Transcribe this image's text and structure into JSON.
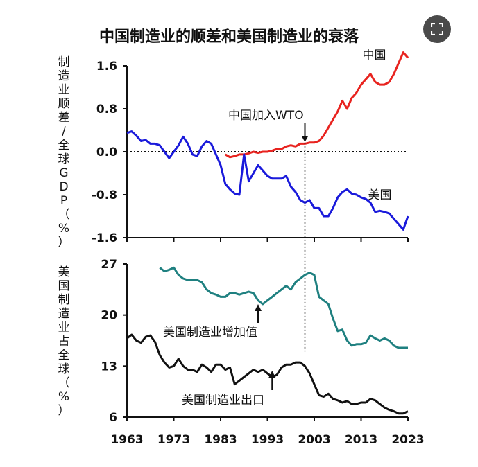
{
  "title": "中国制造业的顺差和美国制造业的衰落",
  "chart_data": [
    {
      "type": "line",
      "ylabel": "制造业顺差/全球GDP（%）",
      "ylim": [
        -1.6,
        1.6
      ],
      "yticks": [
        "1.6",
        "0.8",
        "0.0",
        "-0.8",
        "-1.6"
      ],
      "xlim": [
        1963,
        2023
      ],
      "reference_line": {
        "y": 0.0,
        "style": "dotted"
      },
      "series": [
        {
          "name": "中国",
          "color": "#e8231f",
          "x": [
            1984,
            1985,
            1986,
            1987,
            1988,
            1989,
            1990,
            1991,
            1992,
            1993,
            1994,
            1995,
            1996,
            1997,
            1998,
            1999,
            2000,
            2001,
            2002,
            2003,
            2004,
            2005,
            2006,
            2007,
            2008,
            2009,
            2010,
            2011,
            2012,
            2013,
            2014,
            2015,
            2016,
            2017,
            2018,
            2019,
            2020,
            2021,
            2022,
            2023
          ],
          "values": [
            -0.05,
            -0.1,
            -0.08,
            -0.05,
            -0.05,
            -0.03,
            0.0,
            -0.02,
            0.0,
            0.0,
            0.02,
            0.05,
            0.05,
            0.1,
            0.12,
            0.1,
            0.15,
            0.15,
            0.17,
            0.17,
            0.2,
            0.3,
            0.45,
            0.6,
            0.75,
            0.95,
            0.8,
            1.0,
            1.1,
            1.25,
            1.35,
            1.45,
            1.3,
            1.25,
            1.25,
            1.3,
            1.45,
            1.65,
            1.85,
            1.75
          ]
        },
        {
          "name": "美国",
          "color": "#1a1adb",
          "x": [
            1963,
            1964,
            1965,
            1966,
            1967,
            1968,
            1969,
            1970,
            1971,
            1972,
            1973,
            1974,
            1975,
            1976,
            1977,
            1978,
            1979,
            1980,
            1981,
            1982,
            1983,
            1984,
            1985,
            1986,
            1987,
            1988,
            1989,
            1990,
            1991,
            1992,
            1993,
            1994,
            1995,
            1996,
            1997,
            1998,
            1999,
            2000,
            2001,
            2002,
            2003,
            2004,
            2005,
            2006,
            2007,
            2008,
            2009,
            2010,
            2011,
            2012,
            2013,
            2014,
            2015,
            2016,
            2017,
            2018,
            2019,
            2020,
            2021,
            2022,
            2023
          ],
          "values": [
            0.35,
            0.38,
            0.3,
            0.2,
            0.22,
            0.15,
            0.15,
            0.12,
            0.0,
            -0.12,
            0.0,
            0.12,
            0.28,
            0.15,
            -0.05,
            -0.08,
            0.1,
            0.2,
            0.15,
            -0.05,
            -0.25,
            -0.6,
            -0.7,
            -0.78,
            -0.8,
            -0.05,
            -0.55,
            -0.4,
            -0.25,
            -0.35,
            -0.45,
            -0.5,
            -0.5,
            -0.5,
            -0.45,
            -0.65,
            -0.75,
            -0.9,
            -0.95,
            -0.9,
            -1.05,
            -1.05,
            -1.2,
            -1.2,
            -1.05,
            -0.85,
            -0.75,
            -0.7,
            -0.78,
            -0.8,
            -0.85,
            -0.88,
            -0.95,
            -1.12,
            -1.1,
            -1.12,
            -1.15,
            -1.25,
            -1.35,
            -1.45,
            -1.2
          ]
        }
      ],
      "annotations": [
        {
          "text": "中国加入WTO",
          "x": 2001
        },
        {
          "text": "中国",
          "x": 2017,
          "y": 1.65
        },
        {
          "text": "美国",
          "x": 2017,
          "y": -0.85
        }
      ]
    },
    {
      "type": "line",
      "ylabel": "美国制造业占全球（%）",
      "ylim": [
        6,
        27
      ],
      "yticks": [
        "27",
        "20",
        "13",
        "6"
      ],
      "xlim": [
        1963,
        2023
      ],
      "xticks": [
        "1963",
        "1973",
        "1983",
        "1993",
        "2003",
        "2013",
        "2023"
      ],
      "series": [
        {
          "name": "美国制造业增加值",
          "color": "#1f8080",
          "x": [
            1970,
            1971,
            1972,
            1973,
            1974,
            1975,
            1976,
            1977,
            1978,
            1979,
            1980,
            1981,
            1982,
            1983,
            1984,
            1985,
            1986,
            1987,
            1988,
            1989,
            1990,
            1991,
            1992,
            1993,
            1994,
            1995,
            1996,
            1997,
            1998,
            1999,
            2000,
            2001,
            2002,
            2003,
            2004,
            2005,
            2006,
            2007,
            2008,
            2009,
            2010,
            2011,
            2012,
            2013,
            2014,
            2015,
            2016,
            2017,
            2018,
            2019,
            2020,
            2021,
            2022,
            2023
          ],
          "values": [
            26.5,
            26.0,
            26.2,
            26.5,
            25.5,
            25.0,
            24.8,
            24.8,
            24.8,
            24.5,
            23.5,
            23.0,
            22.8,
            22.5,
            22.5,
            23.0,
            23.0,
            22.8,
            23.0,
            23.2,
            23.0,
            22.0,
            21.5,
            22.0,
            22.5,
            23.0,
            23.5,
            24.0,
            23.5,
            24.5,
            25.0,
            25.5,
            25.8,
            25.5,
            22.5,
            22.0,
            21.5,
            19.5,
            17.8,
            18.0,
            16.5,
            15.8,
            16.0,
            16.0,
            16.2,
            17.2,
            16.8,
            16.5,
            16.8,
            16.5,
            15.8,
            15.5,
            15.5,
            15.5
          ]
        },
        {
          "name": "美国制造业出口",
          "color": "#111111",
          "x": [
            1963,
            1964,
            1965,
            1966,
            1967,
            1968,
            1969,
            1970,
            1971,
            1972,
            1973,
            1974,
            1975,
            1976,
            1977,
            1978,
            1979,
            1980,
            1981,
            1982,
            1983,
            1984,
            1985,
            1986,
            1987,
            1988,
            1989,
            1990,
            1991,
            1992,
            1993,
            1994,
            1995,
            1996,
            1997,
            1998,
            1999,
            2000,
            2001,
            2002,
            2003,
            2004,
            2005,
            2006,
            2007,
            2008,
            2009,
            2010,
            2011,
            2012,
            2013,
            2014,
            2015,
            2016,
            2017,
            2018,
            2019,
            2020,
            2021,
            2022,
            2023
          ],
          "values": [
            16.8,
            17.3,
            16.5,
            16.2,
            17.0,
            17.2,
            16.3,
            14.5,
            13.5,
            12.8,
            13.0,
            14.0,
            13.0,
            12.5,
            12.5,
            12.2,
            13.2,
            12.8,
            12.2,
            13.2,
            13.2,
            12.5,
            12.8,
            10.5,
            11.0,
            11.5,
            12.0,
            12.5,
            12.2,
            12.5,
            12.0,
            11.5,
            11.8,
            12.8,
            13.2,
            13.2,
            13.5,
            13.5,
            13.0,
            12.0,
            10.5,
            9.0,
            8.8,
            9.2,
            8.5,
            8.3,
            8.0,
            8.2,
            7.8,
            7.8,
            8.0,
            8.0,
            8.5,
            8.3,
            7.8,
            7.3,
            7.0,
            6.8,
            6.5,
            6.5,
            6.8
          ]
        }
      ],
      "annotations": [
        {
          "text": "美国制造业增加值",
          "x": 1991
        },
        {
          "text": "美国制造业出口",
          "x": 1994
        }
      ]
    }
  ]
}
